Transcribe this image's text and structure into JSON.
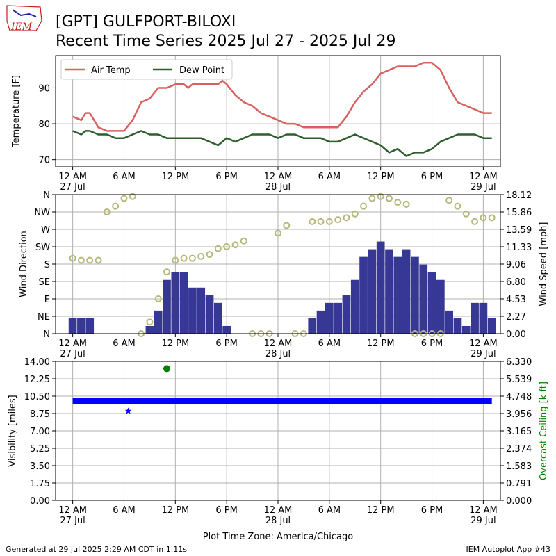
{
  "header": {
    "title": "[GPT] GULFPORT-BILOXI",
    "subtitle": "Recent Time Series 2025 Jul 27 - 2025 Jul 29",
    "logo_text": "IEM"
  },
  "footer": {
    "generated": "Generated at 29 Jul 2025 2:29 AM CDT in 1.11s",
    "app": "IEM Autoplot App #43",
    "timezone_label": "Plot Time Zone: America/Chicago"
  },
  "colors": {
    "air_temp": "#d9605f",
    "dew_point": "#2e5e2e",
    "wind_speed_bars": "#373795",
    "wind_direction_markers": "#b5b87a",
    "visibility": "#0000ff",
    "ceiling": "#008000",
    "grid": "#b0b0b0"
  },
  "x_axis": {
    "ticks": [
      {
        "h": 0,
        "l1": "12 AM",
        "l2": "27 Jul"
      },
      {
        "h": 6,
        "l1": "6 AM",
        "l2": ""
      },
      {
        "h": 12,
        "l1": "12 PM",
        "l2": ""
      },
      {
        "h": 18,
        "l1": "6 PM",
        "l2": ""
      },
      {
        "h": 24,
        "l1": "12 AM",
        "l2": "28 Jul"
      },
      {
        "h": 30,
        "l1": "6 AM",
        "l2": ""
      },
      {
        "h": 36,
        "l1": "12 PM",
        "l2": ""
      },
      {
        "h": 42,
        "l1": "6 PM",
        "l2": ""
      },
      {
        "h": 48,
        "l1": "12 AM",
        "l2": "29 Jul"
      }
    ],
    "range_hours": [
      -2.0,
      50.0
    ]
  },
  "chart_data": [
    {
      "type": "line",
      "ylabel": "Temperature [F]",
      "ylim": [
        68,
        99
      ],
      "yticks": [
        70,
        80,
        90
      ],
      "legend": "top-left",
      "grid": true,
      "x_hours": [
        0,
        1,
        1.5,
        2,
        3,
        4,
        5,
        6,
        7,
        8,
        9,
        10,
        11,
        12,
        13,
        13.5,
        14,
        15,
        16,
        17,
        17.5,
        18,
        19,
        20,
        21,
        22,
        23,
        24,
        25,
        26,
        27,
        28,
        29,
        30,
        31,
        32,
        33,
        34,
        35,
        36,
        37,
        38,
        39,
        40,
        41,
        42,
        43,
        44,
        45,
        46,
        47,
        48,
        49
      ],
      "series": [
        {
          "name": "Air Temp",
          "values": [
            82,
            81,
            83,
            83,
            79,
            78,
            78,
            78,
            81,
            86,
            87,
            90,
            90,
            91,
            91,
            90,
            91,
            91,
            91,
            91,
            92,
            91,
            88,
            86,
            85,
            83,
            82,
            81,
            80,
            80,
            79,
            79,
            79,
            79,
            79,
            82,
            86,
            89,
            91,
            94,
            95,
            96,
            96,
            96,
            97,
            97,
            95,
            90,
            86,
            85,
            84,
            83,
            83
          ]
        },
        {
          "name": "Dew Point",
          "values": [
            78,
            77,
            78,
            78,
            77,
            77,
            76,
            76,
            77,
            78,
            77,
            77,
            76,
            76,
            76,
            76,
            76,
            76,
            75,
            74,
            75,
            76,
            75,
            76,
            77,
            77,
            77,
            76,
            77,
            77,
            76,
            76,
            76,
            75,
            75,
            76,
            77,
            76,
            75,
            74,
            72,
            73,
            71,
            72,
            72,
            73,
            75,
            76,
            77,
            77,
            77,
            76,
            76
          ]
        }
      ]
    },
    {
      "type": "bar",
      "ylabel": "Wind Direction",
      "y2label": "Wind Speed [mph]",
      "ylim": [
        0,
        360
      ],
      "y2lim": [
        0,
        18.12
      ],
      "yticks": [
        "N",
        "NE",
        "E",
        "SE",
        "S",
        "SW",
        "W",
        "NW",
        "N"
      ],
      "y2ticks": [
        "0.00",
        "2.27",
        "4.53",
        "6.80",
        "9.06",
        "11.33",
        "13.59",
        "15.86",
        "18.12"
      ],
      "grid": true,
      "series": [
        {
          "name": "Wind Speed",
          "x_hours": [
            0,
            1,
            2,
            3,
            4,
            5,
            6,
            7,
            8,
            9,
            10,
            11,
            12,
            13,
            14,
            15,
            16,
            17,
            18,
            19,
            20,
            21,
            22,
            23,
            24,
            25,
            26,
            27,
            28,
            29,
            30,
            31,
            32,
            33,
            34,
            35,
            36,
            37,
            38,
            39,
            40,
            41,
            42,
            43,
            44,
            45,
            46,
            47,
            48,
            49
          ],
          "values": [
            2,
            2,
            2,
            0,
            0,
            0,
            0,
            0,
            0,
            1,
            3,
            7,
            8,
            8,
            6,
            6,
            5,
            4,
            1,
            0,
            0,
            0,
            0,
            0,
            0,
            0,
            0,
            0,
            2,
            3,
            4,
            4,
            5,
            7,
            10,
            11,
            12,
            11,
            10,
            11,
            10,
            9,
            8,
            7,
            3,
            2,
            1,
            4,
            4,
            2
          ]
        },
        {
          "name": "Wind Direction",
          "x_hours": [
            0,
            1,
            2,
            3,
            4,
            5,
            6,
            7,
            8,
            9,
            10,
            11,
            12,
            13,
            14,
            15,
            16,
            17,
            18,
            19,
            20,
            21,
            22,
            23,
            24,
            25,
            26,
            27,
            28,
            29,
            30,
            31,
            32,
            33,
            34,
            35,
            36,
            37,
            38,
            39,
            40,
            41,
            42,
            43,
            44,
            45,
            46,
            47,
            48,
            49
          ],
          "values": [
            195,
            190,
            190,
            190,
            315,
            330,
            350,
            355,
            0,
            30,
            90,
            160,
            190,
            195,
            195,
            200,
            205,
            220,
            225,
            230,
            240,
            0,
            0,
            0,
            260,
            280,
            0,
            0,
            290,
            290,
            290,
            295,
            300,
            310,
            330,
            350,
            355,
            350,
            340,
            335,
            0,
            0,
            0,
            0,
            345,
            330,
            310,
            290,
            300,
            300
          ]
        }
      ]
    },
    {
      "type": "scatter",
      "ylabel": "Visibility [miles]",
      "y2label": "Overcast Ceiling [k ft]",
      "ylim": [
        0,
        14
      ],
      "y2lim": [
        0,
        6.33
      ],
      "yticks": [
        "0.00",
        "1.75",
        "3.50",
        "5.25",
        "7.00",
        "8.75",
        "10.50",
        "12.25",
        "14.00"
      ],
      "y2ticks": [
        "0.000",
        "0.791",
        "1.583",
        "2.374",
        "3.165",
        "3.956",
        "4.748",
        "5.539",
        "6.330"
      ],
      "grid": true,
      "series": [
        {
          "name": "Visibility",
          "x_hours": [
            0,
            49
          ],
          "values": [
            10,
            10
          ]
        },
        {
          "name": "Visibility (reduced)",
          "x_hours": [
            6.5
          ],
          "values": [
            9
          ]
        },
        {
          "name": "Overcast Ceiling",
          "x_hours": [
            11
          ],
          "values": [
            6.0
          ]
        }
      ]
    }
  ]
}
